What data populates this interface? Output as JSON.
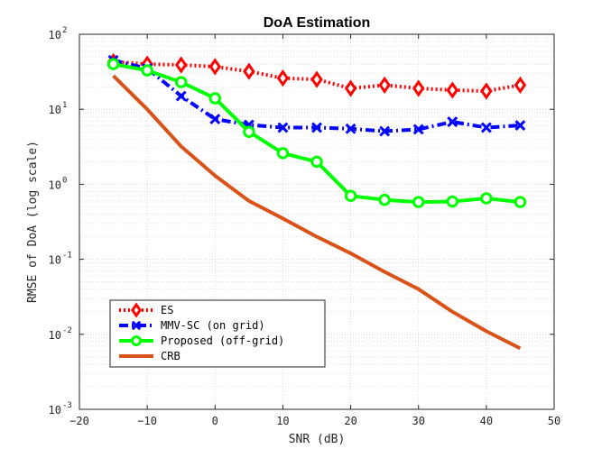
{
  "chart_data": {
    "type": "line",
    "title": "DoA Estimation",
    "xlabel": "SNR (dB)",
    "ylabel": "RMSE of DoA (log scale)",
    "xlim": [
      -20,
      50
    ],
    "ylim": [
      0.001,
      100
    ],
    "yscale": "log",
    "grid": true,
    "legend_position": "bottom-left",
    "x_ticks": [
      "−20",
      "−10",
      "0",
      "10",
      "20",
      "30",
      "40",
      "50"
    ],
    "x_tick_values": [
      -20,
      -10,
      0,
      10,
      20,
      30,
      40,
      50
    ],
    "y_tick_values": [
      0.001,
      0.01,
      0.1,
      1,
      10,
      100
    ],
    "y_tick_exponents": [
      "-3",
      "-2",
      "-1",
      "0",
      "1",
      "2"
    ],
    "y_tick_base": "10",
    "series": [
      {
        "name": "ES",
        "color": "#ff0000",
        "style": "dotted",
        "marker": "diamond",
        "x": [
          -15,
          -10,
          -5,
          0,
          5,
          10,
          15,
          20,
          25,
          30,
          35,
          40,
          45
        ],
        "y": [
          43,
          40,
          39,
          37,
          32,
          26,
          25,
          19,
          21,
          19,
          18,
          17.5,
          21
        ]
      },
      {
        "name": "MMV-SC (on grid)",
        "color": "#0000ff",
        "style": "dashdot",
        "marker": "x",
        "x": [
          -15,
          -10,
          -5,
          0,
          5,
          10,
          15,
          20,
          25,
          30,
          35,
          40,
          45
        ],
        "y": [
          45,
          35,
          15,
          7.4,
          6.2,
          5.7,
          5.7,
          5.5,
          5.1,
          5.4,
          6.8,
          5.7,
          6.1
        ]
      },
      {
        "name": "Proposed (off-grid)",
        "color": "#00ff00",
        "style": "solid",
        "marker": "circle",
        "x": [
          -15,
          -10,
          -5,
          0,
          5,
          10,
          15,
          20,
          25,
          30,
          35,
          40,
          45
        ],
        "y": [
          40,
          33,
          23,
          14,
          5,
          2.6,
          2.0,
          0.7,
          0.62,
          0.58,
          0.59,
          0.65,
          0.58
        ]
      },
      {
        "name": "CRB",
        "color": "#d95319",
        "style": "solid",
        "marker": "none",
        "x": [
          -15,
          -10,
          -5,
          0,
          5,
          10,
          15,
          20,
          25,
          30,
          35,
          40,
          45
        ],
        "y": [
          28,
          10,
          3.2,
          1.3,
          0.6,
          0.35,
          0.2,
          0.12,
          0.068,
          0.04,
          0.02,
          0.011,
          0.0065
        ]
      }
    ]
  }
}
